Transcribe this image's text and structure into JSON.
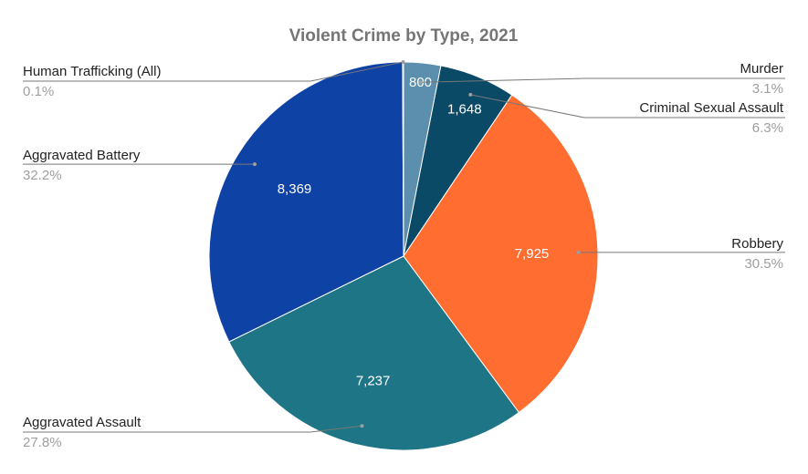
{
  "chart_data": {
    "type": "pie",
    "title": "Violent Crime by Type, 2021",
    "slices": [
      {
        "label": "Murder",
        "value": 800,
        "value_label": "800",
        "percent": "3.1%",
        "color": "#5b8fad"
      },
      {
        "label": "Criminal Sexual Assault",
        "value": 1648,
        "value_label": "1,648",
        "percent": "6.3%",
        "color": "#0a4a66"
      },
      {
        "label": "Robbery",
        "value": 7925,
        "value_label": "7,925",
        "percent": "30.5%",
        "color": "#ff6d31"
      },
      {
        "label": "Aggravated Assault",
        "value": 7237,
        "value_label": "7,237",
        "percent": "27.8%",
        "color": "#1e7585"
      },
      {
        "label": "Aggravated Battery",
        "value": 8369,
        "value_label": "8,369",
        "percent": "32.2%",
        "color": "#0f42a5"
      },
      {
        "label": "Human Trafficking (All)",
        "value": 21,
        "value_label": "",
        "percent": "0.1%",
        "color": "#5a8fb0"
      }
    ],
    "legend": "none",
    "start": "top, clockwise"
  }
}
